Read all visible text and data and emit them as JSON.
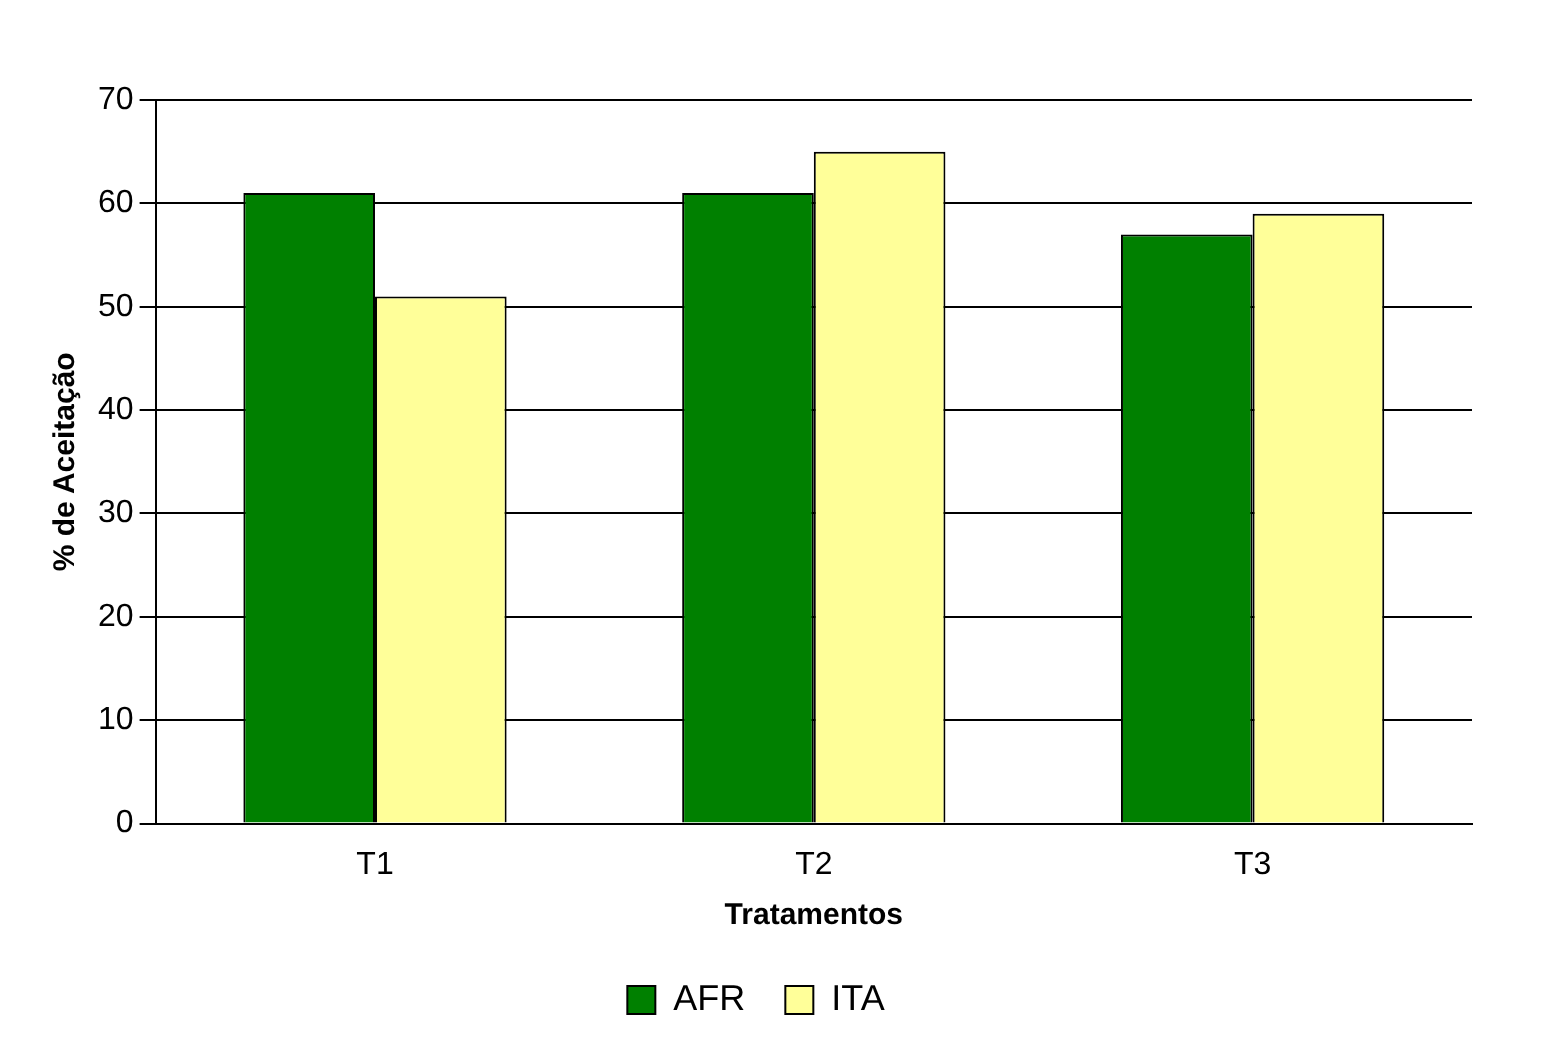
{
  "chart_data": {
    "type": "bar",
    "xlabel": "Tratamentos",
    "ylabel": "% de Aceitação",
    "categories": [
      "T1",
      "T2",
      "T3"
    ],
    "series": [
      {
        "name": "AFR",
        "color": "#008000",
        "values": [
          61,
          61,
          57
        ]
      },
      {
        "name": "ITA",
        "color": "#ffff99",
        "values": [
          51,
          65,
          59
        ]
      }
    ],
    "ylim": [
      0,
      70
    ],
    "yticks": [
      0,
      10,
      20,
      30,
      40,
      50,
      60,
      70
    ],
    "grid": "y",
    "legend": "bottom"
  }
}
